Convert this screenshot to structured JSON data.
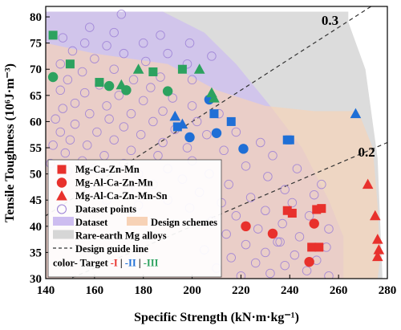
{
  "chart_data": {
    "type": "scatter",
    "xlabel": "Specific Strength (kN·m·kg⁻¹)",
    "ylabel": "Tensile Toughness (10⁶J·m⁻³)",
    "xlim": [
      140,
      280
    ],
    "ylim": [
      30,
      82
    ],
    "x_ticks": [
      140,
      160,
      180,
      200,
      220,
      240,
      260,
      280
    ],
    "y_ticks": [
      30,
      35,
      40,
      45,
      50,
      55,
      60,
      65,
      70,
      75,
      80
    ],
    "grid": false,
    "legend_position": "bottom-left",
    "colors": {
      "target1": "#e8312c",
      "target2": "#1f6fd6",
      "target3": "#2ca25f",
      "dataset_points": "#9b7fd6",
      "dataset_region": "#cdbdf0",
      "design_region": "#f7d2b6",
      "rare_earth_region": "#d6d6d6"
    },
    "guide_lines": [
      {
        "label": "0.3",
        "slope": 0.3
      },
      {
        "label": "0.2",
        "slope": 0.2
      }
    ],
    "legend": [
      {
        "label": "Mg-Ca-Zn-Mn",
        "marker": "square"
      },
      {
        "label": "Mg-Al-Ca-Zn-Mn",
        "marker": "circle"
      },
      {
        "label": "Mg-Al-Ca-Zn-Mn-Sn",
        "marker": "triangle"
      },
      {
        "label": "Dataset points",
        "marker": "open-circle"
      },
      {
        "label": "Dataset",
        "marker": "region"
      },
      {
        "label": "Design schemes",
        "marker": "region"
      },
      {
        "label": "Rare-earth Mg alloys",
        "marker": "region"
      },
      {
        "label": "Design guide line",
        "marker": "dashed-line"
      }
    ],
    "legend_target": {
      "prefix": "color- Target",
      "items": [
        "-I",
        "-II",
        "-III"
      ]
    },
    "regions": {
      "rare_earth": [
        [
          140,
          81
        ],
        [
          264,
          81
        ],
        [
          264,
          79
        ],
        [
          271,
          70
        ],
        [
          276,
          53
        ],
        [
          278,
          30
        ],
        [
          140,
          30
        ]
      ],
      "dataset": [
        [
          140,
          81
        ],
        [
          188,
          81
        ],
        [
          205,
          77
        ],
        [
          218,
          71
        ],
        [
          232,
          63
        ],
        [
          245,
          55
        ],
        [
          256,
          45
        ],
        [
          262,
          38
        ],
        [
          262,
          30
        ],
        [
          140,
          30
        ]
      ],
      "design": [
        [
          140,
          75
        ],
        [
          160,
          73
        ],
        [
          190,
          71
        ],
        [
          210,
          66
        ],
        [
          230,
          63
        ],
        [
          250,
          62
        ],
        [
          268,
          62
        ],
        [
          274,
          55
        ],
        [
          276,
          44
        ],
        [
          277,
          34
        ],
        [
          276,
          30
        ],
        [
          140,
          30
        ]
      ]
    },
    "series": [
      {
        "name": "Mg-Ca-Zn-Mn",
        "marker": "square",
        "points": [
          {
            "x": 143,
            "y": 76.5,
            "target": 3
          },
          {
            "x": 150,
            "y": 71,
            "target": 3
          },
          {
            "x": 162,
            "y": 67.5,
            "target": 3
          },
          {
            "x": 184,
            "y": 69.5,
            "target": 3
          },
          {
            "x": 196,
            "y": 70,
            "target": 3
          },
          {
            "x": 194,
            "y": 59,
            "target": 2
          },
          {
            "x": 209,
            "y": 61.5,
            "target": 2
          },
          {
            "x": 216,
            "y": 60,
            "target": 2
          },
          {
            "x": 239,
            "y": 56.5,
            "target": 2
          },
          {
            "x": 240,
            "y": 56.5,
            "target": 2
          },
          {
            "x": 239,
            "y": 43,
            "target": 1
          },
          {
            "x": 241,
            "y": 42.5,
            "target": 1
          },
          {
            "x": 251,
            "y": 43.2,
            "target": 1
          },
          {
            "x": 253,
            "y": 43.4,
            "target": 1
          },
          {
            "x": 249,
            "y": 36,
            "target": 1
          },
          {
            "x": 252,
            "y": 36,
            "target": 1
          }
        ]
      },
      {
        "name": "Mg-Al-Ca-Zn-Mn",
        "marker": "circle",
        "points": [
          {
            "x": 143,
            "y": 68.5,
            "target": 3
          },
          {
            "x": 166,
            "y": 66.8,
            "target": 3
          },
          {
            "x": 173,
            "y": 66,
            "target": 3
          },
          {
            "x": 190,
            "y": 65.8,
            "target": 3
          },
          {
            "x": 207,
            "y": 64.2,
            "target": 2
          },
          {
            "x": 210,
            "y": 57.8,
            "target": 2
          },
          {
            "x": 199,
            "y": 57,
            "target": 2
          },
          {
            "x": 221,
            "y": 54.8,
            "target": 2
          },
          {
            "x": 222,
            "y": 40,
            "target": 1
          },
          {
            "x": 233,
            "y": 38.6,
            "target": 1
          },
          {
            "x": 250,
            "y": 40.5,
            "target": 1
          },
          {
            "x": 248,
            "y": 33.2,
            "target": 1
          }
        ]
      },
      {
        "name": "Mg-Al-Ca-Zn-Mn-Sn",
        "marker": "triangle",
        "points": [
          {
            "x": 171,
            "y": 67,
            "target": 3
          },
          {
            "x": 178,
            "y": 70,
            "target": 3
          },
          {
            "x": 203,
            "y": 70,
            "target": 3
          },
          {
            "x": 208,
            "y": 65.5,
            "target": 3
          },
          {
            "x": 209,
            "y": 64.5,
            "target": 3
          },
          {
            "x": 193,
            "y": 61,
            "target": 2
          },
          {
            "x": 196,
            "y": 59.5,
            "target": 2
          },
          {
            "x": 267,
            "y": 61.5,
            "target": 2
          },
          {
            "x": 272,
            "y": 48,
            "target": 1
          },
          {
            "x": 275,
            "y": 42,
            "target": 1
          },
          {
            "x": 276,
            "y": 37.5,
            "target": 1
          },
          {
            "x": 276.5,
            "y": 35.5,
            "target": 1
          },
          {
            "x": 276,
            "y": 34.2,
            "target": 1
          }
        ]
      },
      {
        "name": "Dataset points",
        "marker": "open-circle",
        "points": [
          {
            "x": 171,
            "y": 80.5
          },
          {
            "x": 158,
            "y": 78
          },
          {
            "x": 168,
            "y": 77
          },
          {
            "x": 147,
            "y": 76
          },
          {
            "x": 187,
            "y": 76.5
          },
          {
            "x": 156,
            "y": 75
          },
          {
            "x": 180,
            "y": 75
          },
          {
            "x": 199,
            "y": 75
          },
          {
            "x": 165,
            "y": 74.5
          },
          {
            "x": 151,
            "y": 73.5
          },
          {
            "x": 172,
            "y": 73
          },
          {
            "x": 190,
            "y": 73
          },
          {
            "x": 208,
            "y": 72.5
          },
          {
            "x": 160,
            "y": 72
          },
          {
            "x": 146,
            "y": 71
          },
          {
            "x": 181,
            "y": 71.5
          },
          {
            "x": 198,
            "y": 71
          },
          {
            "x": 168,
            "y": 70
          },
          {
            "x": 155,
            "y": 69.5
          },
          {
            "x": 187,
            "y": 68.5
          },
          {
            "x": 149,
            "y": 68
          },
          {
            "x": 176,
            "y": 68
          },
          {
            "x": 200,
            "y": 68
          },
          {
            "x": 162,
            "y": 67
          },
          {
            "x": 183,
            "y": 66.5
          },
          {
            "x": 146,
            "y": 66
          },
          {
            "x": 156,
            "y": 65.5
          },
          {
            "x": 170,
            "y": 65
          },
          {
            "x": 192,
            "y": 64.5
          },
          {
            "x": 180,
            "y": 64
          },
          {
            "x": 152,
            "y": 63.5
          },
          {
            "x": 165,
            "y": 63
          },
          {
            "x": 200,
            "y": 63
          },
          {
            "x": 147,
            "y": 62.5
          },
          {
            "x": 188,
            "y": 62
          },
          {
            "x": 158,
            "y": 61.5
          },
          {
            "x": 175,
            "y": 61.5
          },
          {
            "x": 211,
            "y": 61.5
          },
          {
            "x": 144,
            "y": 60.5
          },
          {
            "x": 166,
            "y": 60.5
          },
          {
            "x": 184,
            "y": 60
          },
          {
            "x": 202,
            "y": 60
          },
          {
            "x": 152,
            "y": 59.5
          },
          {
            "x": 172,
            "y": 59
          },
          {
            "x": 193,
            "y": 58.5
          },
          {
            "x": 146,
            "y": 58
          },
          {
            "x": 161,
            "y": 58
          },
          {
            "x": 218,
            "y": 58
          },
          {
            "x": 179,
            "y": 57.5
          },
          {
            "x": 206,
            "y": 57.5
          },
          {
            "x": 150,
            "y": 56.5
          },
          {
            "x": 168,
            "y": 56.5
          },
          {
            "x": 188,
            "y": 56
          },
          {
            "x": 228,
            "y": 56
          },
          {
            "x": 143,
            "y": 55.5
          },
          {
            "x": 157,
            "y": 55.5
          },
          {
            "x": 198,
            "y": 55
          },
          {
            "x": 175,
            "y": 54.5
          },
          {
            "x": 213,
            "y": 54.5
          },
          {
            "x": 148,
            "y": 54
          },
          {
            "x": 164,
            "y": 53.5
          },
          {
            "x": 186,
            "y": 53.5
          },
          {
            "x": 233,
            "y": 53.5
          },
          {
            "x": 155,
            "y": 52.5
          },
          {
            "x": 200,
            "y": 52.5
          },
          {
            "x": 142,
            "y": 52
          },
          {
            "x": 172,
            "y": 52
          },
          {
            "x": 222,
            "y": 51.5
          },
          {
            "x": 160,
            "y": 51
          },
          {
            "x": 190,
            "y": 51
          },
          {
            "x": 243,
            "y": 51
          },
          {
            "x": 149,
            "y": 50.5
          },
          {
            "x": 178,
            "y": 50
          },
          {
            "x": 207,
            "y": 50
          },
          {
            "x": 231,
            "y": 49.5
          },
          {
            "x": 165,
            "y": 49.5
          },
          {
            "x": 196,
            "y": 49
          },
          {
            "x": 146,
            "y": 48.5
          },
          {
            "x": 184,
            "y": 48
          },
          {
            "x": 215,
            "y": 48
          },
          {
            "x": 253,
            "y": 48
          },
          {
            "x": 158,
            "y": 47.5
          },
          {
            "x": 238,
            "y": 47
          },
          {
            "x": 174,
            "y": 47
          },
          {
            "x": 203,
            "y": 46.5
          },
          {
            "x": 250,
            "y": 46
          },
          {
            "x": 224,
            "y": 45.5
          },
          {
            "x": 165,
            "y": 45
          },
          {
            "x": 190,
            "y": 45
          },
          {
            "x": 212,
            "y": 44.5
          },
          {
            "x": 241,
            "y": 44.5
          },
          {
            "x": 178,
            "y": 44
          },
          {
            "x": 199,
            "y": 43.5
          },
          {
            "x": 230,
            "y": 43
          },
          {
            "x": 218,
            "y": 42
          },
          {
            "x": 248,
            "y": 42
          },
          {
            "x": 208,
            "y": 41
          },
          {
            "x": 237,
            "y": 40.5
          },
          {
            "x": 227,
            "y": 39.5
          },
          {
            "x": 256,
            "y": 39.5
          },
          {
            "x": 214,
            "y": 38.5
          },
          {
            "x": 244,
            "y": 38
          },
          {
            "x": 235,
            "y": 37
          },
          {
            "x": 236,
            "y": 37
          },
          {
            "x": 222,
            "y": 36.5
          },
          {
            "x": 255,
            "y": 36
          },
          {
            "x": 205,
            "y": 35.5
          },
          {
            "x": 230,
            "y": 35
          },
          {
            "x": 242,
            "y": 34.5
          },
          {
            "x": 216,
            "y": 34
          },
          {
            "x": 251,
            "y": 33.5
          },
          {
            "x": 226,
            "y": 33
          },
          {
            "x": 238,
            "y": 32.5
          },
          {
            "x": 210,
            "y": 32
          },
          {
            "x": 247,
            "y": 31.5
          },
          {
            "x": 232,
            "y": 31
          },
          {
            "x": 220,
            "y": 30.5
          },
          {
            "x": 256,
            "y": 30.5
          }
        ]
      }
    ]
  }
}
